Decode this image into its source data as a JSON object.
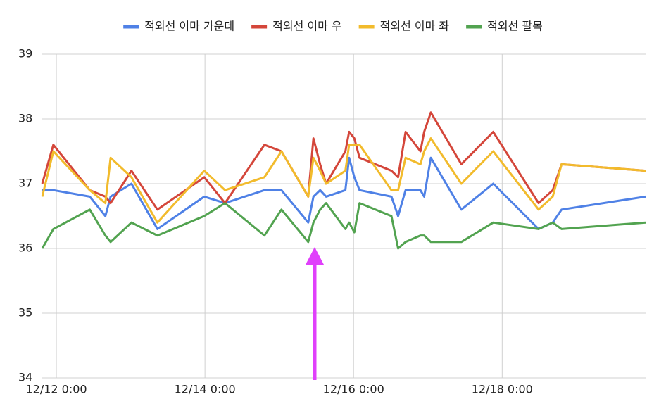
{
  "chart_data": {
    "type": "line",
    "x": [
      11.81,
      11.96,
      12.45,
      12.66,
      12.73,
      13.01,
      13.36,
      13.99,
      14.27,
      14.8,
      15.03,
      15.39,
      15.46,
      15.55,
      15.63,
      15.89,
      15.94,
      16.01,
      16.08,
      16.51,
      16.6,
      16.7,
      16.9,
      16.95,
      17.04,
      17.45,
      17.88,
      18.49,
      18.68,
      18.8,
      19.93
    ],
    "series": [
      {
        "name": "적외선 이마 가운데",
        "color": "#4f81e6",
        "values": [
          36.9,
          36.9,
          36.8,
          36.5,
          36.8,
          37.0,
          36.3,
          36.8,
          36.7,
          36.9,
          36.9,
          36.4,
          36.8,
          36.9,
          36.8,
          36.9,
          37.4,
          37.1,
          36.9,
          36.8,
          36.5,
          36.9,
          36.9,
          36.8,
          37.4,
          36.6,
          37.0,
          36.3,
          36.4,
          36.6,
          36.8
        ]
      },
      {
        "name": "적외선 이마 우",
        "color": "#d4463a",
        "values": [
          37.0,
          37.6,
          36.9,
          36.8,
          36.7,
          37.2,
          36.6,
          37.1,
          36.7,
          37.6,
          37.5,
          36.8,
          37.7,
          37.3,
          37.0,
          37.5,
          37.8,
          37.7,
          37.4,
          37.2,
          37.1,
          37.8,
          37.5,
          37.8,
          38.1,
          37.3,
          37.8,
          36.7,
          36.9,
          37.3,
          37.2
        ]
      },
      {
        "name": "적외선 이마 좌",
        "color": "#f2bb2c",
        "values": [
          36.8,
          37.5,
          36.9,
          36.7,
          37.4,
          37.1,
          36.4,
          37.2,
          36.9,
          37.1,
          37.5,
          36.8,
          37.4,
          37.2,
          37.0,
          37.2,
          37.6,
          37.6,
          37.6,
          36.9,
          36.9,
          37.4,
          37.3,
          37.5,
          37.7,
          37.0,
          37.5,
          36.6,
          36.8,
          37.3,
          37.2
        ]
      },
      {
        "name": "적외선 팔목",
        "color": "#52a350",
        "values": [
          36.0,
          36.3,
          36.6,
          36.2,
          36.1,
          36.4,
          36.2,
          36.5,
          36.7,
          36.2,
          36.6,
          36.1,
          36.4,
          36.6,
          36.7,
          36.3,
          36.4,
          36.25,
          36.7,
          36.5,
          36.0,
          36.1,
          36.2,
          36.2,
          36.1,
          36.1,
          36.4,
          36.3,
          36.4,
          36.3,
          36.4
        ]
      }
    ],
    "xlim": [
      11.81,
      19.93
    ],
    "xticks": [
      {
        "value": 12,
        "label": "12/12 0:00"
      },
      {
        "value": 14,
        "label": "12/14 0:00"
      },
      {
        "value": 16,
        "label": "12/16 0:00"
      },
      {
        "value": 18,
        "label": "12/18 0:00"
      }
    ],
    "ylim": [
      34,
      39
    ],
    "yticks": [
      34,
      35,
      36,
      37,
      38,
      39
    ],
    "grid": true,
    "legend": "top"
  }
}
